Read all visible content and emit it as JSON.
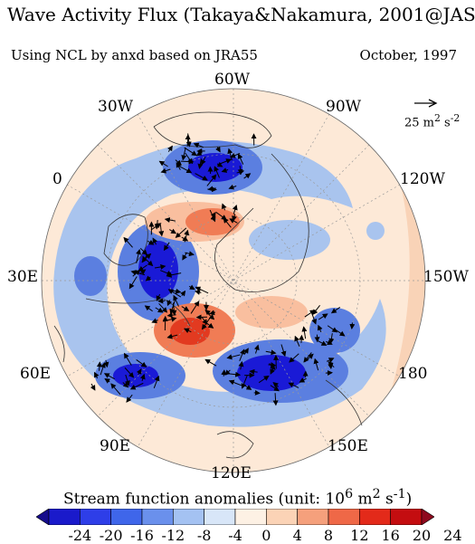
{
  "header": {
    "title": "Wave Activity Flux (Takaya&Nakamura, 2001@JAS)",
    "subtitle_left": "Using NCL by anxd based on JRA55",
    "subtitle_right": "October, 1997"
  },
  "map": {
    "projection": "polar-stereographic",
    "hemisphere": "north",
    "longitude_labels": [
      "60W",
      "90W",
      "120W",
      "150W",
      "180",
      "150E",
      "120E",
      "90E",
      "60E",
      "30E",
      "0",
      "30W"
    ],
    "reference_vector": {
      "label": "25 m",
      "sup": "2",
      "unit_rest": " s",
      "sup2": "-2"
    },
    "colors": {
      "neg_strong": "#1a1ad6",
      "neg_mid": "#5b7fe0",
      "neg_light": "#a9c4ee",
      "neg_pale": "#d4e3f6",
      "pos_pale": "#fde9d7",
      "pos_light": "#f9bf9f",
      "pos_mid": "#f07c55",
      "pos_strong": "#e23a20",
      "coast": "#333333",
      "vector": "#000000"
    }
  },
  "colorbar": {
    "title_prefix": "Stream function anomalies (unit: 10",
    "title_sup1": "6",
    "title_mid": " m",
    "title_sup2": "2",
    "title_s": " s",
    "title_sup3": "-1",
    "title_suffix": ")",
    "ticks": [
      "-24",
      "-20",
      "-16",
      "-12",
      "-8",
      "-4",
      "0",
      "4",
      "8",
      "12",
      "16",
      "20",
      "24"
    ],
    "colors": [
      "#160c8c",
      "#1a1acb",
      "#2e3ee8",
      "#3f66ea",
      "#6a90ec",
      "#a4c2f2",
      "#d8e6f8",
      "#fdf1e4",
      "#fbd3b6",
      "#f5a07c",
      "#ef6847",
      "#e32a1a",
      "#c40d10",
      "#8e0a1e"
    ]
  }
}
